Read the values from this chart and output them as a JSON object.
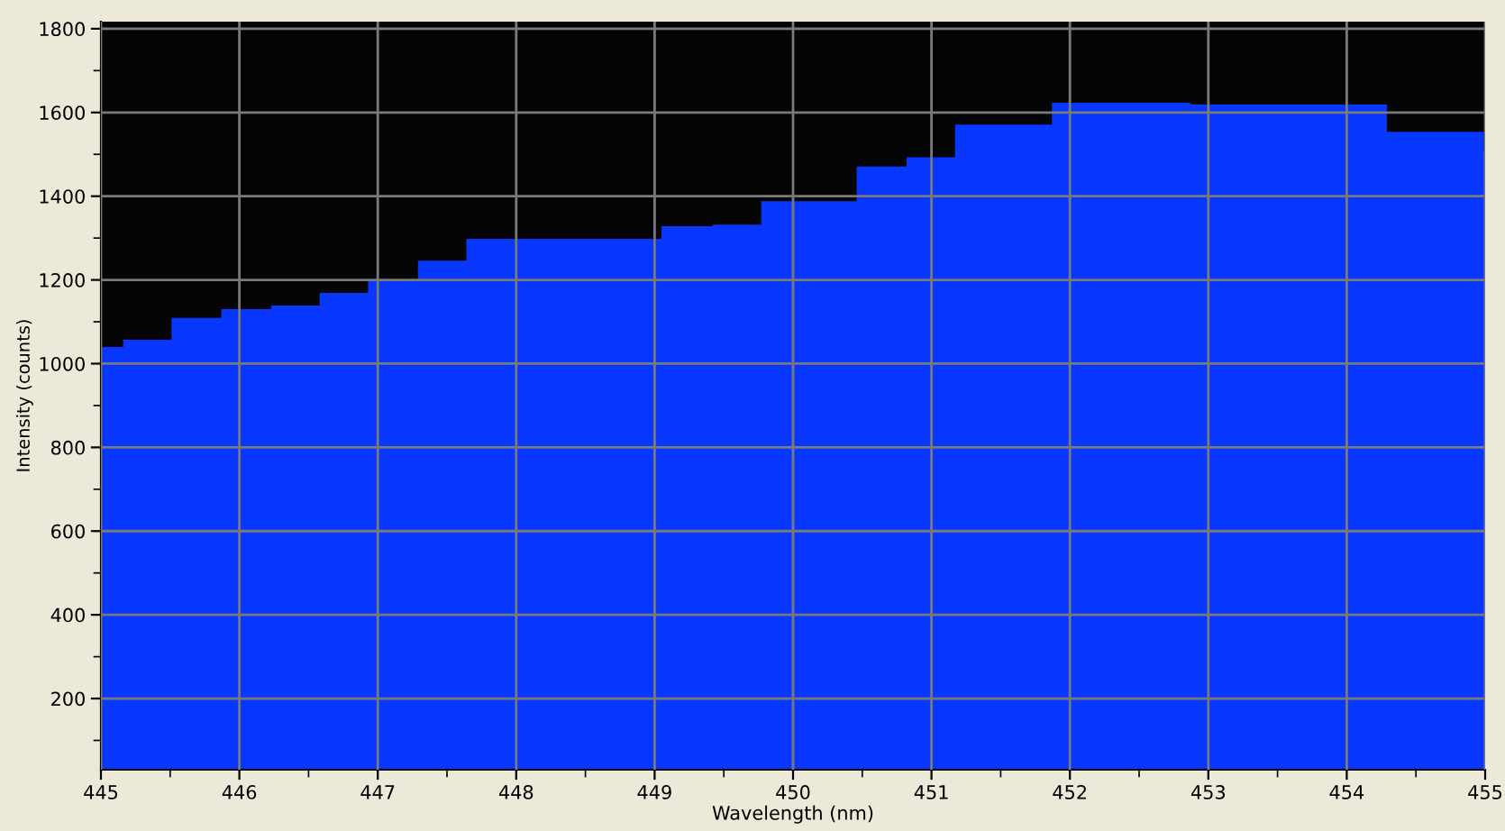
{
  "chart_data": {
    "type": "area",
    "xlabel": "Wavelength (nm)",
    "ylabel": "Intensity (counts)",
    "x": [
      445,
      445.16,
      445.51,
      445.87,
      446.23,
      446.58,
      446.93,
      447.29,
      447.64,
      449.05,
      449.42,
      449.77,
      450.46,
      450.82,
      451.17,
      451.87,
      452.87,
      454.29,
      454.99
    ],
    "series": [
      {
        "color": "#0838ff",
        "values": [
          1040,
          1057,
          1109,
          1130,
          1139,
          1169,
          1198,
          1246,
          1298,
          1328,
          1332,
          1388,
          1471,
          1493,
          1571,
          1623,
          1619,
          1554,
          1506
        ]
      }
    ],
    "xlim": [
      445,
      455
    ],
    "xticks": [
      445,
      446,
      447,
      448,
      449,
      450,
      451,
      452,
      453,
      454,
      455
    ],
    "ylim": [
      30,
      1817
    ],
    "yticks": [
      200,
      400,
      600,
      800,
      1000,
      1200,
      1400,
      1600,
      1800
    ],
    "grid": true,
    "legend": false
  }
}
